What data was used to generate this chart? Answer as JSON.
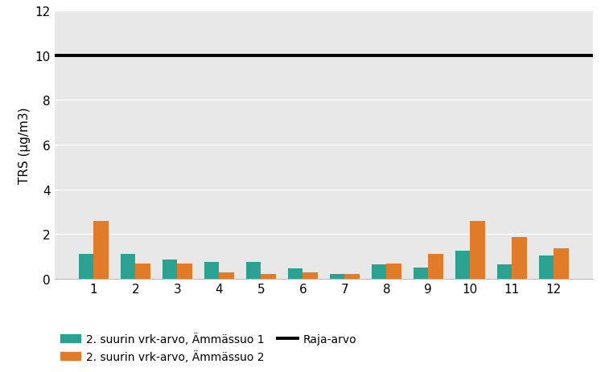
{
  "categories": [
    "1",
    "2",
    "3",
    "4",
    "5",
    "6",
    "7",
    "8",
    "9",
    "10",
    "11",
    "12"
  ],
  "ammassuo1": [
    1.1,
    1.1,
    0.85,
    0.75,
    0.75,
    0.45,
    0.2,
    0.65,
    0.5,
    1.25,
    0.65,
    1.05
  ],
  "ammassuo2": [
    2.6,
    0.7,
    0.7,
    0.3,
    0.2,
    0.3,
    0.2,
    0.7,
    1.1,
    2.6,
    1.85,
    1.35
  ],
  "raja_arvo": 10,
  "color1": "#2aa191",
  "color2": "#e07b2a",
  "color_raja": "#000000",
  "ylabel": "TRS (μg/m3)",
  "ylim": [
    0,
    12
  ],
  "yticks": [
    0,
    2,
    4,
    6,
    8,
    10,
    12
  ],
  "legend1": "2. suurin vrk-arvo, Ämmässuo 1",
  "legend2": "2. suurin vrk-arvo, Ämmässuo 2",
  "legend_raja": "Raja-arvo",
  "plot_bg_color": "#e8e8e8",
  "fig_bg_color": "#ffffff",
  "bar_width": 0.35,
  "raja_linewidth": 2.8,
  "tick_fontsize": 11,
  "ylabel_fontsize": 11,
  "legend_fontsize": 10
}
